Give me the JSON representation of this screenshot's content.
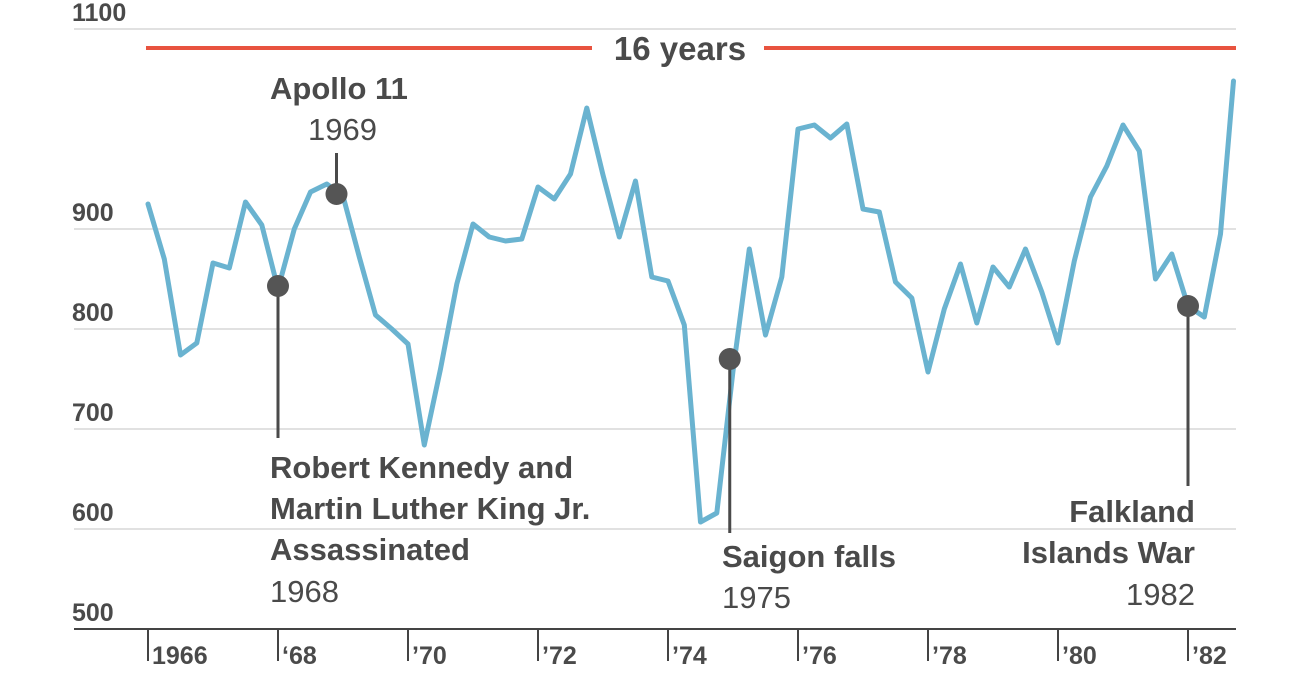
{
  "chart_data": {
    "type": "line",
    "title": "",
    "xlabel": "",
    "ylabel": "",
    "ylim": [
      500,
      1170
    ],
    "y_ticks": [
      "500",
      "600",
      "700",
      "800",
      "900",
      "1100"
    ],
    "y_tick_values": [
      500,
      600,
      700,
      800,
      900,
      1100
    ],
    "x_tick_labels": [
      "1966",
      "‘68",
      "’70",
      "’72",
      "’74",
      "’76",
      "’78",
      "’80",
      "’82"
    ],
    "x_tick_values": [
      1966,
      1968,
      1970,
      1972,
      1974,
      1976,
      1978,
      1980,
      1982
    ],
    "xlim": [
      1965.8,
      1982.8
    ],
    "grid": true,
    "line_color": "#6ab3d0",
    "series": [
      {
        "name": "",
        "x": [
          1966.0,
          1966.25,
          1966.5,
          1966.75,
          1967.0,
          1967.25,
          1967.5,
          1967.75,
          1968.0,
          1968.25,
          1968.5,
          1968.75,
          1969.0,
          1969.25,
          1969.5,
          1969.75,
          1970.0,
          1970.25,
          1970.5,
          1970.75,
          1971.0,
          1971.25,
          1971.5,
          1971.75,
          1972.0,
          1972.25,
          1972.5,
          1972.75,
          1973.0,
          1973.25,
          1973.5,
          1973.75,
          1974.0,
          1974.25,
          1974.5,
          1974.75,
          1975.0,
          1975.25,
          1975.5,
          1975.75,
          1976.0,
          1976.25,
          1976.5,
          1976.75,
          1977.0,
          1977.25,
          1977.5,
          1977.75,
          1978.0,
          1978.25,
          1978.5,
          1978.75,
          1979.0,
          1979.25,
          1979.5,
          1979.75,
          1980.0,
          1980.25,
          1980.5,
          1980.75,
          1981.0,
          1981.25,
          1981.5,
          1981.75,
          1982.0,
          1982.25,
          1982.5,
          1982.7
        ],
        "values": [
          925,
          870,
          774,
          786,
          866,
          861,
          927,
          904,
          840,
          900,
          937,
          945,
          933,
          872,
          814,
          800,
          785,
          684,
          760,
          845,
          905,
          892,
          888,
          890,
          942,
          930,
          955,
          1021,
          954,
          892,
          948,
          852,
          848,
          804,
          607,
          616,
          758,
          880,
          794,
          852,
          1000,
          1004,
          991,
          1005,
          920,
          917,
          847,
          831,
          757,
          820,
          865,
          806,
          862,
          842,
          880,
          837,
          786,
          868,
          932,
          963,
          1004,
          978,
          850,
          875,
          823,
          812,
          895,
          1048
        ]
      }
    ],
    "span_marker": {
      "label": "16 years",
      "color": "#e8533f"
    },
    "annotations": [
      {
        "title_lines": [
          "Apollo 11"
        ],
        "year": "1969",
        "x": 1968.9,
        "y": 935
      },
      {
        "title_lines": [
          "Robert Kennedy and",
          "Martin Luther King Jr.",
          "Assassinated"
        ],
        "year": "1968",
        "x": 1968.0,
        "y": 843
      },
      {
        "title_lines": [
          "Saigon falls"
        ],
        "year": "1975",
        "x": 1974.95,
        "y": 770
      },
      {
        "title_lines": [
          "Falkland",
          "Islands War"
        ],
        "year": "1982",
        "x": 1982.0,
        "y": 823
      }
    ]
  }
}
